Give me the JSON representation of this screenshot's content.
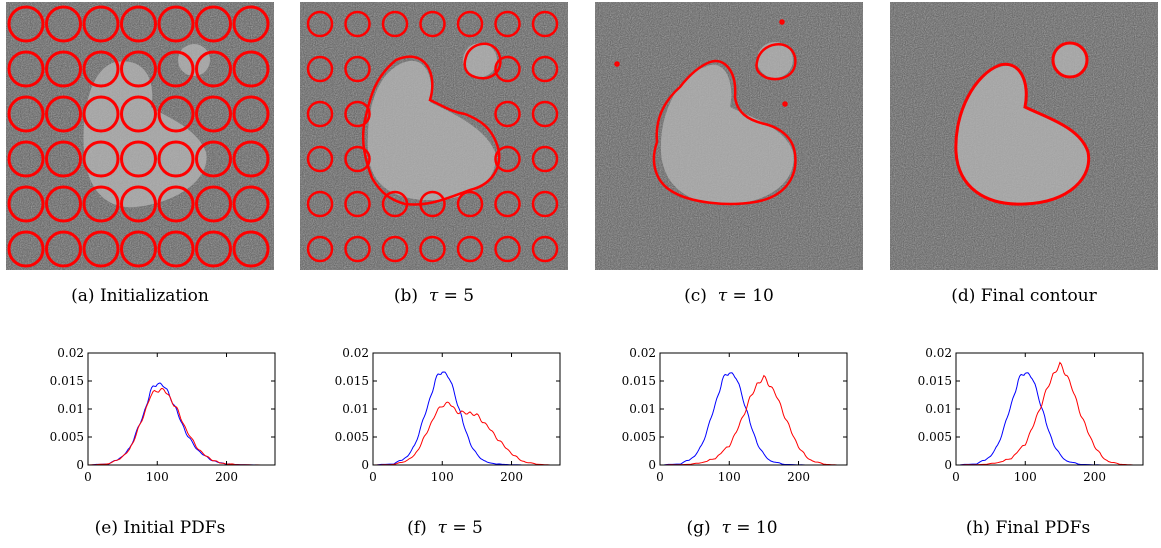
{
  "images": [
    {
      "caption_id": "(a)",
      "caption_text": "Initialization"
    },
    {
      "caption_id": "(b)",
      "caption_sym": "τ",
      "caption_text": " = 5"
    },
    {
      "caption_id": "(c)",
      "caption_sym": "τ",
      "caption_text": " = 10"
    },
    {
      "caption_id": "(d)",
      "caption_text": "Final contour"
    }
  ],
  "colors": {
    "curve_red": "#ff0000",
    "curve_blue": "#0000ff",
    "noise_bg": "#5a5a5a",
    "noise_obj": "#a8a8a8"
  },
  "chart_data": [
    {
      "type": "line",
      "caption_id": "(e)",
      "caption_text": "Initial PDFs",
      "xlim": [
        0,
        270
      ],
      "ylim": [
        0,
        0.02
      ],
      "xticks": [
        "0",
        "100",
        "200"
      ],
      "yticks": [
        "0",
        "0.005",
        "0.01",
        "0.015",
        "0.02"
      ],
      "series": [
        {
          "color": "#0000ff",
          "x": [
            0,
            30,
            50,
            60,
            70,
            80,
            90,
            100,
            110,
            120,
            130,
            140,
            150,
            160,
            170,
            180,
            190,
            200,
            220,
            250
          ],
          "y": [
            0,
            0.0002,
            0.0015,
            0.003,
            0.0058,
            0.009,
            0.013,
            0.0148,
            0.014,
            0.012,
            0.009,
            0.0062,
            0.004,
            0.0025,
            0.0015,
            0.0008,
            0.0004,
            0.0002,
            5e-05,
            0
          ]
        },
        {
          "color": "#ff0000",
          "x": [
            0,
            30,
            50,
            60,
            70,
            80,
            90,
            100,
            110,
            120,
            130,
            140,
            150,
            160,
            170,
            180,
            190,
            200,
            220,
            250
          ],
          "y": [
            0,
            0.0002,
            0.0014,
            0.0028,
            0.0055,
            0.0088,
            0.0122,
            0.0135,
            0.0133,
            0.0118,
            0.0095,
            0.0068,
            0.0045,
            0.0028,
            0.0016,
            0.0009,
            0.0004,
            0.0002,
            5e-05,
            0
          ]
        }
      ]
    },
    {
      "type": "line",
      "caption_id": "(f)",
      "caption_sym": "τ",
      "caption_text": " = 5",
      "xlim": [
        0,
        270
      ],
      "ylim": [
        0,
        0.02
      ],
      "xticks": [
        "0",
        "100",
        "200"
      ],
      "yticks": [
        "0",
        "0.005",
        "0.01",
        "0.015",
        "0.02"
      ],
      "series": [
        {
          "color": "#0000ff",
          "x": [
            0,
            30,
            50,
            60,
            70,
            80,
            90,
            100,
            110,
            120,
            130,
            140,
            150,
            160,
            170,
            190,
            220
          ],
          "y": [
            0,
            0.0002,
            0.0015,
            0.0035,
            0.007,
            0.011,
            0.015,
            0.017,
            0.0155,
            0.012,
            0.0075,
            0.004,
            0.0018,
            0.0008,
            0.0003,
            0.0001,
            0
          ]
        },
        {
          "color": "#ff0000",
          "x": [
            0,
            30,
            50,
            60,
            70,
            80,
            90,
            100,
            110,
            120,
            130,
            140,
            150,
            160,
            170,
            180,
            190,
            200,
            210,
            220,
            240,
            260
          ],
          "y": [
            0,
            0.0001,
            0.0008,
            0.0018,
            0.0038,
            0.0065,
            0.009,
            0.0108,
            0.011,
            0.0097,
            0.0092,
            0.0094,
            0.0088,
            0.0077,
            0.0062,
            0.0047,
            0.0033,
            0.0021,
            0.0011,
            0.0005,
            0.0001,
            0
          ]
        }
      ]
    },
    {
      "type": "line",
      "caption_id": "(g)",
      "caption_sym": "τ",
      "caption_text": " = 10",
      "xlim": [
        0,
        270
      ],
      "ylim": [
        0,
        0.02
      ],
      "xticks": [
        "0",
        "100",
        "200"
      ],
      "yticks": [
        "0",
        "0.005",
        "0.01",
        "0.015",
        "0.02"
      ],
      "series": [
        {
          "color": "#0000ff",
          "x": [
            0,
            30,
            50,
            60,
            70,
            80,
            90,
            100,
            110,
            120,
            130,
            140,
            150,
            160,
            180,
            210
          ],
          "y": [
            0,
            0.0002,
            0.0015,
            0.0035,
            0.0068,
            0.011,
            0.015,
            0.0168,
            0.0155,
            0.012,
            0.0075,
            0.004,
            0.0018,
            0.0007,
            0.0001,
            0
          ]
        },
        {
          "color": "#ff0000",
          "x": [
            0,
            40,
            60,
            80,
            100,
            110,
            120,
            130,
            140,
            150,
            160,
            170,
            180,
            190,
            200,
            210,
            220,
            240,
            260
          ],
          "y": [
            0,
            0.0001,
            0.0004,
            0.0012,
            0.0035,
            0.0058,
            0.0088,
            0.0118,
            0.0145,
            0.0155,
            0.0142,
            0.0118,
            0.0088,
            0.0058,
            0.0033,
            0.0016,
            0.0007,
            0.0001,
            0
          ]
        }
      ]
    },
    {
      "type": "line",
      "caption_id": "(h)",
      "caption_text": "Final PDFs",
      "xlim": [
        0,
        270
      ],
      "ylim": [
        0,
        0.02
      ],
      "xticks": [
        "0",
        "100",
        "200"
      ],
      "yticks": [
        "0",
        "0.005",
        "0.01",
        "0.015",
        "0.02"
      ],
      "series": [
        {
          "color": "#0000ff",
          "x": [
            0,
            30,
            50,
            60,
            70,
            80,
            90,
            100,
            110,
            120,
            130,
            140,
            150,
            160,
            180,
            210
          ],
          "y": [
            0,
            0.0002,
            0.0015,
            0.0035,
            0.0068,
            0.011,
            0.015,
            0.0168,
            0.0155,
            0.012,
            0.0075,
            0.004,
            0.0018,
            0.0007,
            0.0001,
            0
          ]
        },
        {
          "color": "#ff0000",
          "x": [
            0,
            40,
            60,
            80,
            100,
            110,
            120,
            130,
            140,
            150,
            160,
            170,
            180,
            190,
            200,
            210,
            220,
            240,
            260
          ],
          "y": [
            0,
            0.0001,
            0.0004,
            0.0012,
            0.0038,
            0.0065,
            0.0098,
            0.013,
            0.0162,
            0.0178,
            0.0162,
            0.0128,
            0.0092,
            0.006,
            0.0034,
            0.0016,
            0.0006,
            0.0001,
            0
          ]
        }
      ]
    }
  ]
}
